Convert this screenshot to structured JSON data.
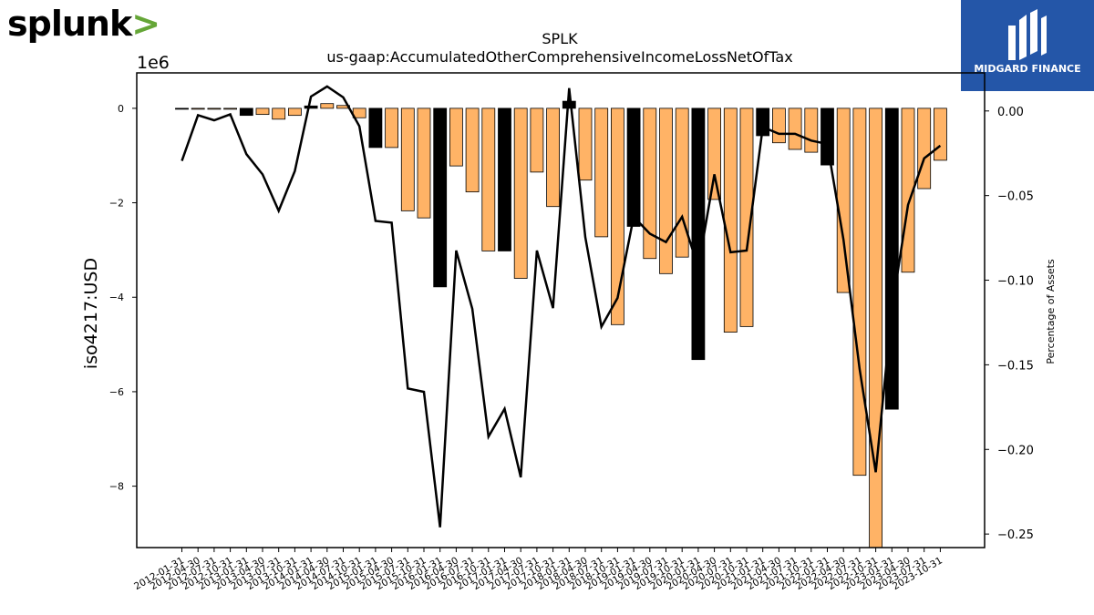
{
  "logos": {
    "left_text": "splunk",
    "left_chevron": ">",
    "right_text": "MIDGARD FINANCE"
  },
  "colors": {
    "bar_positive_default": "#000000",
    "bar_orange": "#ffb366",
    "line": "#000000"
  },
  "chart_data": {
    "type": "bar",
    "title": "SPLK",
    "subtitle": "us-gaap:AccumulatedOtherComprehensiveIncomeLossNetOfTax",
    "ylabel": "iso4217:USD",
    "y_offset_label": "1e6",
    "y2label": "Percentage of Assets",
    "ylim": [
      -9.3,
      0.75
    ],
    "y2lim": [
      -0.258,
      0.0225
    ],
    "yticks": [
      0,
      -2,
      -4,
      -6,
      -8
    ],
    "y2ticks": [
      0.0,
      -0.05,
      -0.1,
      -0.15,
      -0.2,
      -0.25
    ],
    "ytick_labels": [
      "0",
      "−2",
      "−4",
      "−6",
      "−8"
    ],
    "y2tick_labels": [
      "0.00",
      "−0.05",
      "−0.10",
      "−0.15",
      "−0.20",
      "−0.25"
    ],
    "categories": [
      "2012-01-31",
      "2012-04-30",
      "2012-07-31",
      "2012-10-31",
      "2013-01-31",
      "2013-04-30",
      "2013-07-31",
      "2013-10-31",
      "2014-01-31",
      "2014-04-30",
      "2014-07-31",
      "2014-10-31",
      "2015-01-31",
      "2015-04-30",
      "2015-07-31",
      "2015-10-31",
      "2016-01-31",
      "2016-04-30",
      "2016-07-31",
      "2016-10-31",
      "2017-01-31",
      "2017-04-30",
      "2017-07-31",
      "2017-10-31",
      "2018-01-31",
      "2018-04-30",
      "2018-07-31",
      "2018-10-31",
      "2019-01-31",
      "2019-04-30",
      "2019-07-31",
      "2019-10-31",
      "2020-01-31",
      "2020-04-30",
      "2020-07-31",
      "2020-10-31",
      "2021-01-31",
      "2021-04-30",
      "2021-07-31",
      "2021-10-31",
      "2022-01-31",
      "2022-04-30",
      "2022-07-31",
      "2022-10-31",
      "2023-01-31",
      "2023-04-30",
      "2023-07-31",
      "2023-10-31"
    ],
    "values": [
      -0.01,
      -0.01,
      -0.01,
      0.0,
      -0.15,
      -0.13,
      -0.23,
      -0.15,
      0.05,
      0.1,
      0.06,
      -0.2,
      -0.83,
      -0.83,
      -2.17,
      -2.32,
      -3.78,
      -1.22,
      -1.77,
      -3.02,
      -3.02,
      -3.6,
      -1.35,
      -2.08,
      0.15,
      -1.52,
      -2.72,
      -4.58,
      -2.5,
      -3.18,
      -3.5,
      -3.15,
      -5.32,
      -1.93,
      -4.74,
      -4.62,
      -0.58,
      -0.73,
      -0.87,
      -0.93,
      -1.2,
      -3.9,
      -7.77,
      -9.3,
      -6.37,
      -3.47,
      -1.7,
      -1.1
    ],
    "bar_colors": [
      "k",
      "o",
      "o",
      "o",
      "k",
      "o",
      "o",
      "o",
      "k",
      "o",
      "o",
      "o",
      "k",
      "o",
      "o",
      "o",
      "k",
      "o",
      "o",
      "o",
      "k",
      "o",
      "o",
      "o",
      "k",
      "o",
      "o",
      "o",
      "k",
      "o",
      "o",
      "o",
      "k",
      "o",
      "o",
      "o",
      "k",
      "o",
      "o",
      "o",
      "k",
      "o",
      "o",
      "o",
      "k",
      "o",
      "o",
      "o"
    ],
    "line_values": [
      -0.0295,
      -0.0025,
      -0.0055,
      -0.002,
      -0.0255,
      -0.0375,
      -0.059,
      -0.0355,
      0.0085,
      0.0145,
      0.008,
      -0.009,
      -0.065,
      -0.066,
      -0.164,
      -0.166,
      -0.246,
      -0.0825,
      -0.117,
      -0.1925,
      -0.176,
      -0.2165,
      -0.0825,
      -0.1165,
      0.0135,
      -0.0745,
      -0.1275,
      -0.1105,
      -0.0625,
      -0.0725,
      -0.0775,
      -0.0625,
      -0.0925,
      -0.0375,
      -0.0835,
      -0.0825,
      -0.0095,
      -0.0135,
      -0.0135,
      -0.0175,
      -0.0195,
      -0.076,
      -0.1525,
      -0.2135,
      -0.1175,
      -0.0555,
      -0.028,
      -0.0205
    ],
    "grid": false
  }
}
